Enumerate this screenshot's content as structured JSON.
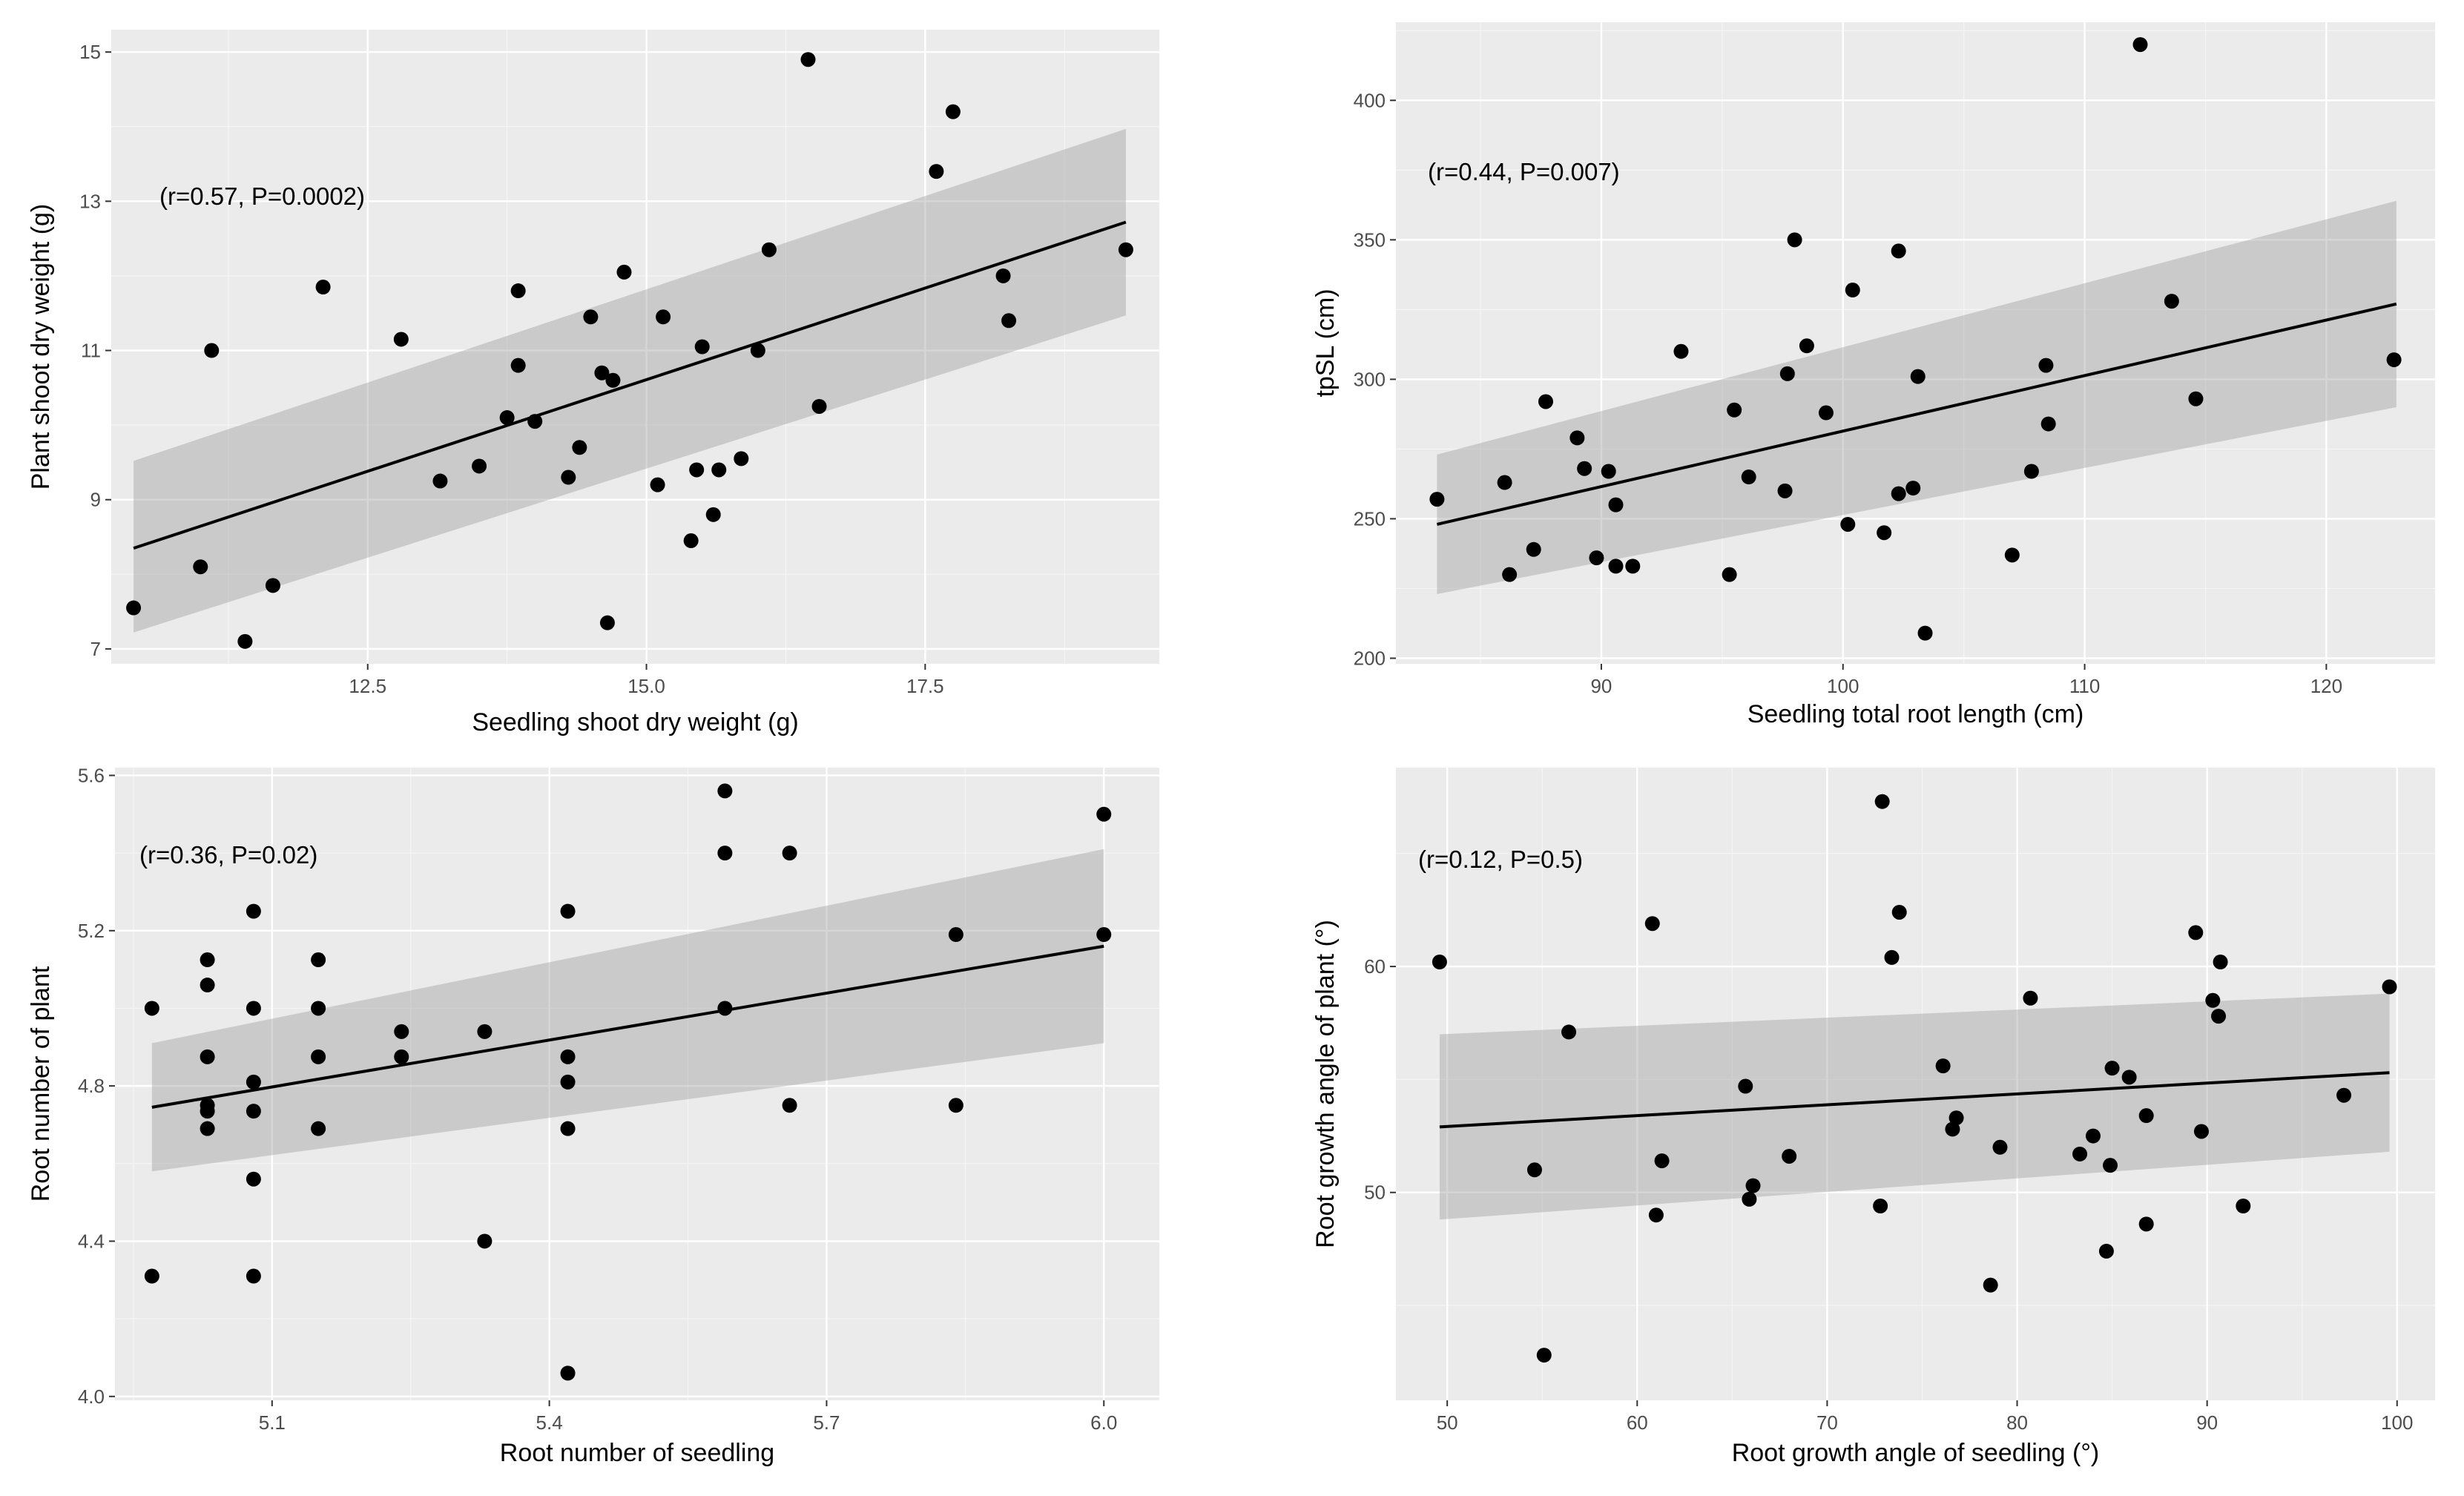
{
  "chart_data": [
    {
      "type": "scatter",
      "title": "",
      "xlabel": "Seedling shoot dry weight (g)",
      "ylabel": "Plant shoot dry weight (g)",
      "annotation": "(r=0.57, P=0.0002)",
      "xlim": [
        10.2,
        19.6
      ],
      "ylim": [
        6.8,
        15.3
      ],
      "xticks": [
        12.5,
        15.0,
        17.5
      ],
      "xtick_labels": [
        "12.5",
        "15.0",
        "17.5"
      ],
      "yticks": [
        7,
        9,
        11,
        13,
        15
      ],
      "ytick_labels": [
        "7",
        "9",
        "11",
        "13",
        "15"
      ],
      "fit": {
        "x": [
          10.4,
          19.3
        ],
        "y": [
          8.35,
          12.72
        ]
      },
      "band": {
        "x": [
          10.4,
          19.3
        ],
        "upper": [
          9.52,
          13.97
        ],
        "lower": [
          7.22,
          11.47
        ]
      },
      "points": [
        [
          10.4,
          7.55
        ],
        [
          11.0,
          8.1
        ],
        [
          11.1,
          11.0
        ],
        [
          11.4,
          7.1
        ],
        [
          11.65,
          7.85
        ],
        [
          12.1,
          11.85
        ],
        [
          12.8,
          11.15
        ],
        [
          13.15,
          9.25
        ],
        [
          13.5,
          9.45
        ],
        [
          13.75,
          10.1
        ],
        [
          13.85,
          10.8
        ],
        [
          13.85,
          11.8
        ],
        [
          14.0,
          10.05
        ],
        [
          14.3,
          9.3
        ],
        [
          14.4,
          9.7
        ],
        [
          14.5,
          11.45
        ],
        [
          14.6,
          10.7
        ],
        [
          14.65,
          7.35
        ],
        [
          14.7,
          10.6
        ],
        [
          14.8,
          12.05
        ],
        [
          15.1,
          9.2
        ],
        [
          15.15,
          11.45
        ],
        [
          15.4,
          8.45
        ],
        [
          15.45,
          9.4
        ],
        [
          15.5,
          11.05
        ],
        [
          15.6,
          8.8
        ],
        [
          15.65,
          9.4
        ],
        [
          15.85,
          9.55
        ],
        [
          16.0,
          11.0
        ],
        [
          16.1,
          12.35
        ],
        [
          16.45,
          14.9
        ],
        [
          16.55,
          10.25
        ],
        [
          17.6,
          13.4
        ],
        [
          17.75,
          14.2
        ],
        [
          18.2,
          12.0
        ],
        [
          18.25,
          11.4
        ],
        [
          19.3,
          12.35
        ]
      ]
    },
    {
      "type": "scatter",
      "title": "",
      "xlabel": "Seedling total root length (cm)",
      "ylabel": "tpSL (cm)",
      "annotation": "(r=0.44, P=0.007)",
      "xlim": [
        81.5,
        124.5
      ],
      "ylim": [
        198,
        428
      ],
      "xticks": [
        90,
        100,
        110,
        120
      ],
      "xtick_labels": [
        "90",
        "100",
        "110",
        "120"
      ],
      "yticks": [
        200,
        250,
        300,
        350,
        400
      ],
      "ytick_labels": [
        "200",
        "250",
        "300",
        "350",
        "400"
      ],
      "fit": {
        "x": [
          83.2,
          122.9
        ],
        "y": [
          248,
          327
        ]
      },
      "band": {
        "x": [
          83.2,
          122.9
        ],
        "upper": [
          273,
          364
        ],
        "lower": [
          223,
          290
        ]
      },
      "points": [
        [
          83.2,
          257
        ],
        [
          86.0,
          263
        ],
        [
          86.2,
          230
        ],
        [
          87.2,
          239
        ],
        [
          87.7,
          292
        ],
        [
          89.0,
          279
        ],
        [
          89.3,
          268
        ],
        [
          89.8,
          236
        ],
        [
          90.3,
          267
        ],
        [
          90.6,
          233
        ],
        [
          90.6,
          255
        ],
        [
          91.3,
          233
        ],
        [
          93.3,
          310
        ],
        [
          95.3,
          230
        ],
        [
          95.5,
          289
        ],
        [
          96.1,
          265
        ],
        [
          97.6,
          260
        ],
        [
          97.7,
          302
        ],
        [
          98.0,
          350
        ],
        [
          98.5,
          312
        ],
        [
          99.3,
          288
        ],
        [
          100.2,
          248
        ],
        [
          100.4,
          332
        ],
        [
          101.7,
          245
        ],
        [
          102.3,
          259
        ],
        [
          102.3,
          346
        ],
        [
          102.9,
          261
        ],
        [
          103.1,
          301
        ],
        [
          103.4,
          209
        ],
        [
          107.0,
          237
        ],
        [
          107.8,
          267
        ],
        [
          108.4,
          305
        ],
        [
          108.5,
          284
        ],
        [
          112.3,
          420
        ],
        [
          113.6,
          328
        ],
        [
          114.6,
          293
        ],
        [
          122.8,
          307
        ]
      ]
    },
    {
      "type": "scatter",
      "title": "",
      "xlabel": "Root number of seedling",
      "ylabel": "Root number of plant",
      "annotation": "(r=0.36, P=0.02)",
      "xlim": [
        4.93,
        6.06
      ],
      "ylim": [
        3.99,
        5.62
      ],
      "xticks": [
        5.1,
        5.4,
        5.7,
        6.0
      ],
      "xtick_labels": [
        "5.1",
        "5.4",
        "5.7",
        "6.0"
      ],
      "yticks": [
        4.0,
        4.4,
        4.8,
        5.2,
        5.6
      ],
      "ytick_labels": [
        "4.0",
        "4.4",
        "4.8",
        "5.2",
        "5.6"
      ],
      "fit": {
        "x": [
          4.97,
          6.0
        ],
        "y": [
          4.745,
          5.16
        ]
      },
      "band": {
        "x": [
          4.97,
          6.0
        ],
        "upper": [
          4.91,
          5.41
        ],
        "lower": [
          4.58,
          4.91
        ]
      },
      "points": [
        [
          4.97,
          5.0
        ],
        [
          4.97,
          4.31
        ],
        [
          5.03,
          5.125
        ],
        [
          5.03,
          5.06
        ],
        [
          5.03,
          4.875
        ],
        [
          5.03,
          4.75
        ],
        [
          5.03,
          4.735
        ],
        [
          5.03,
          4.69
        ],
        [
          5.08,
          5.25
        ],
        [
          5.08,
          5.0
        ],
        [
          5.08,
          4.81
        ],
        [
          5.08,
          4.735
        ],
        [
          5.08,
          4.56
        ],
        [
          5.08,
          4.31
        ],
        [
          5.15,
          5.125
        ],
        [
          5.15,
          5.0
        ],
        [
          5.15,
          4.875
        ],
        [
          5.15,
          4.69
        ],
        [
          5.24,
          4.94
        ],
        [
          5.24,
          4.875
        ],
        [
          5.33,
          4.94
        ],
        [
          5.33,
          4.4
        ],
        [
          5.42,
          5.25
        ],
        [
          5.42,
          4.875
        ],
        [
          5.42,
          4.81
        ],
        [
          5.42,
          4.69
        ],
        [
          5.42,
          4.06
        ],
        [
          5.59,
          5.56
        ],
        [
          5.59,
          5.4
        ],
        [
          5.59,
          5.0
        ],
        [
          5.66,
          5.4
        ],
        [
          5.66,
          4.75
        ],
        [
          5.84,
          5.19
        ],
        [
          5.84,
          4.75
        ],
        [
          6.0,
          5.5
        ],
        [
          6.0,
          5.19
        ]
      ]
    },
    {
      "type": "scatter",
      "title": "",
      "xlabel": "Root growth angle of seedling (°)",
      "ylabel": "Root growth angle of plant (°)",
      "annotation": "(r=0.12, P=0.5)",
      "xlim": [
        47.3,
        102
      ],
      "ylim": [
        40.8,
        68.8
      ],
      "xticks": [
        50,
        60,
        70,
        80,
        90,
        100
      ],
      "xtick_labels": [
        "50",
        "60",
        "70",
        "80",
        "90",
        "100"
      ],
      "yticks": [
        50,
        60
      ],
      "ytick_labels": [
        "50",
        "60"
      ],
      "fit": {
        "x": [
          49.6,
          99.6
        ],
        "y": [
          52.9,
          55.3
        ]
      },
      "band": {
        "x": [
          49.6,
          99.6
        ],
        "upper": [
          57.0,
          58.8
        ],
        "lower": [
          48.8,
          51.8
        ]
      },
      "points": [
        [
          49.6,
          60.2
        ],
        [
          54.6,
          51.0
        ],
        [
          55.1,
          42.8
        ],
        [
          56.4,
          57.1
        ],
        [
          60.8,
          61.9
        ],
        [
          61.0,
          49.0
        ],
        [
          61.3,
          51.4
        ],
        [
          65.7,
          54.7
        ],
        [
          65.9,
          49.7
        ],
        [
          66.1,
          50.3
        ],
        [
          68.0,
          51.6
        ],
        [
          72.8,
          49.4
        ],
        [
          72.9,
          67.3
        ],
        [
          73.4,
          60.4
        ],
        [
          73.8,
          62.4
        ],
        [
          76.1,
          55.6
        ],
        [
          76.6,
          52.8
        ],
        [
          76.8,
          53.3
        ],
        [
          79.1,
          52.0
        ],
        [
          78.6,
          45.9
        ],
        [
          80.7,
          58.6
        ],
        [
          83.3,
          51.7
        ],
        [
          84.0,
          52.5
        ],
        [
          84.7,
          47.4
        ],
        [
          84.9,
          51.2
        ],
        [
          85.0,
          55.5
        ],
        [
          85.9,
          55.1
        ],
        [
          86.8,
          53.4
        ],
        [
          86.8,
          48.6
        ],
        [
          89.4,
          61.5
        ],
        [
          89.7,
          52.7
        ],
        [
          90.3,
          58.5
        ],
        [
          90.6,
          57.8
        ],
        [
          90.7,
          60.2
        ],
        [
          91.9,
          49.4
        ],
        [
          97.2,
          54.3
        ],
        [
          99.6,
          59.1
        ]
      ]
    }
  ]
}
